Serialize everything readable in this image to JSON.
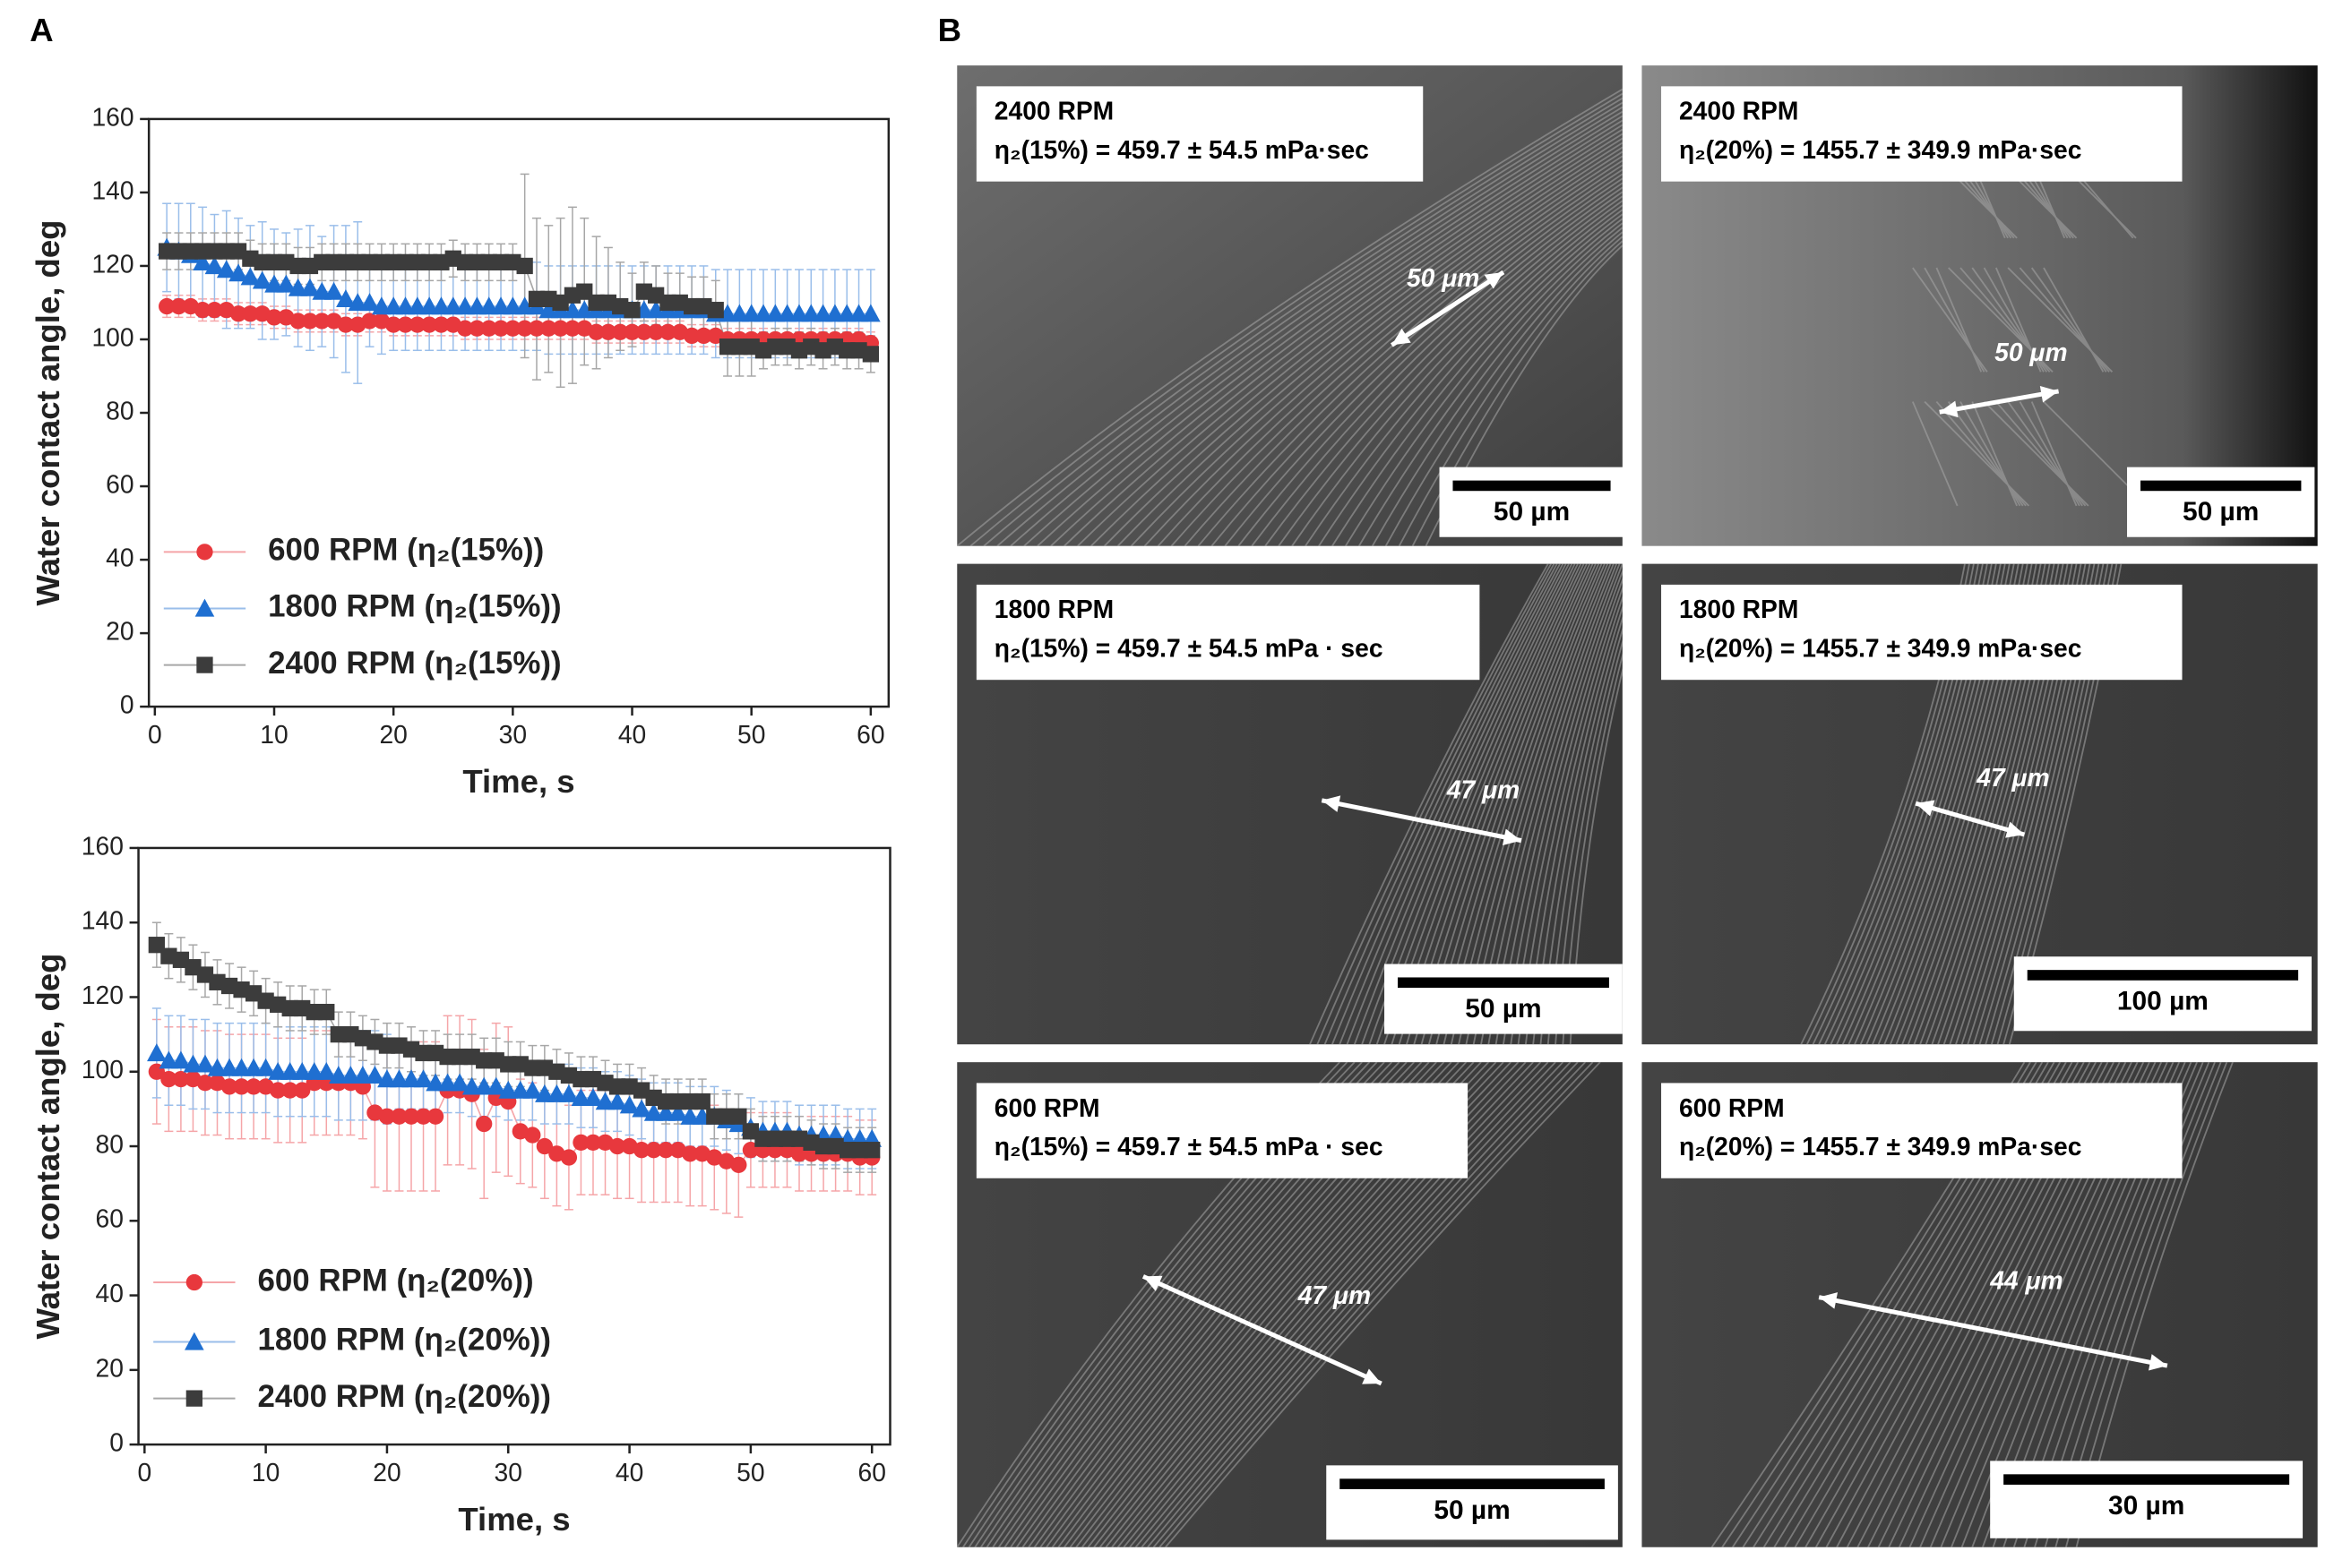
{
  "panel_labels": [
    "A",
    "B"
  ],
  "chart_data": [
    {
      "type": "line",
      "xlabel": "Time, s",
      "ylabel": "Water contact angle, deg",
      "xlim": [
        -0.5,
        61.5
      ],
      "ylim": [
        0,
        160
      ],
      "xticks": [
        0,
        10,
        20,
        30,
        40,
        50,
        60
      ],
      "yticks": [
        0,
        20,
        40,
        60,
        80,
        100,
        120,
        140,
        160
      ],
      "legend": "lower left",
      "x": [
        1,
        2,
        3,
        4,
        5,
        6,
        7,
        8,
        9,
        10,
        11,
        12,
        13,
        14,
        15,
        16,
        17,
        18,
        19,
        20,
        21,
        22,
        23,
        24,
        25,
        26,
        27,
        28,
        29,
        30,
        31,
        32,
        33,
        34,
        35,
        36,
        37,
        38,
        39,
        40,
        41,
        42,
        43,
        44,
        45,
        46,
        47,
        48,
        49,
        50,
        51,
        52,
        53,
        54,
        55,
        56,
        57,
        58,
        59,
        60
      ],
      "series": [
        {
          "name": "600 RPM (η₂(15%))",
          "color": "#e8383d",
          "marker": "circle",
          "values": [
            109,
            109,
            109,
            108,
            108,
            108,
            107,
            107,
            107,
            106,
            106,
            105,
            105,
            105,
            105,
            104,
            104,
            105,
            105,
            104,
            104,
            104,
            104,
            104,
            104,
            103,
            103,
            103,
            103,
            103,
            103,
            103,
            103,
            103,
            103,
            103,
            102,
            102,
            102,
            102,
            102,
            102,
            102,
            102,
            101,
            101,
            101,
            100,
            100,
            100,
            100,
            100,
            100,
            100,
            100,
            100,
            100,
            100,
            100,
            99
          ],
          "errors": [
            3,
            3,
            3,
            3,
            3,
            3,
            3,
            3,
            3,
            3,
            3,
            3,
            3,
            3,
            3,
            3,
            3,
            3,
            3,
            3,
            3,
            3,
            3,
            3,
            3,
            3,
            3,
            3,
            3,
            3,
            3,
            3,
            3,
            3,
            3,
            3,
            3,
            3,
            3,
            3,
            3,
            3,
            3,
            3,
            3,
            3,
            3,
            3,
            3,
            3,
            3,
            3,
            3,
            3,
            3,
            3,
            3,
            3,
            3,
            3
          ]
        },
        {
          "name": "1800 RPM (η₂(15%))",
          "color": "#1f6fd1",
          "marker": "triangle",
          "values": [
            125,
            124,
            123,
            121,
            120,
            119,
            118,
            117,
            116,
            115,
            115,
            114,
            114,
            113,
            113,
            111,
            110,
            110,
            109,
            109,
            109,
            109,
            109,
            109,
            109,
            109,
            109,
            109,
            109,
            109,
            109,
            109,
            108,
            108,
            108,
            108,
            108,
            108,
            108,
            108,
            108,
            108,
            108,
            108,
            108,
            108,
            107,
            107,
            107,
            107,
            107,
            107,
            107,
            107,
            107,
            107,
            107,
            107,
            107,
            107
          ],
          "errors": [
            12,
            13,
            14,
            15,
            14,
            16,
            15,
            14,
            16,
            15,
            14,
            16,
            17,
            15,
            18,
            20,
            22,
            12,
            13,
            12,
            12,
            12,
            12,
            12,
            12,
            12,
            12,
            12,
            12,
            12,
            12,
            12,
            12,
            12,
            12,
            12,
            12,
            12,
            12,
            12,
            12,
            12,
            12,
            12,
            12,
            12,
            12,
            12,
            12,
            12,
            12,
            12,
            12,
            12,
            12,
            12,
            12,
            12,
            12,
            12
          ]
        },
        {
          "name": "2400 RPM (η₂(15%))",
          "color": "#3c3c3c",
          "marker": "square",
          "values": [
            124,
            124,
            124,
            124,
            124,
            124,
            124,
            122,
            121,
            121,
            121,
            120,
            120,
            121,
            121,
            121,
            121,
            121,
            121,
            121,
            121,
            121,
            121,
            121,
            122,
            121,
            121,
            121,
            121,
            121,
            120,
            111,
            111,
            110,
            112,
            113,
            110,
            110,
            109,
            108,
            113,
            112,
            110,
            110,
            109,
            109,
            108,
            98,
            98,
            98,
            97,
            98,
            98,
            97,
            98,
            97,
            98,
            97,
            97,
            96
          ],
          "errors": [
            5,
            5,
            5,
            5,
            5,
            5,
            5,
            5,
            5,
            5,
            5,
            5,
            5,
            5,
            5,
            5,
            5,
            5,
            5,
            5,
            5,
            5,
            5,
            5,
            5,
            5,
            5,
            5,
            5,
            5,
            25,
            22,
            20,
            23,
            24,
            20,
            18,
            15,
            12,
            10,
            8,
            8,
            8,
            8,
            8,
            8,
            8,
            8,
            8,
            8,
            5,
            5,
            5,
            5,
            5,
            5,
            5,
            5,
            5,
            5
          ]
        }
      ]
    },
    {
      "type": "line",
      "xlabel": "Time, s",
      "ylabel": "Water contact angle, deg",
      "xlim": [
        -0.5,
        61.5
      ],
      "ylim": [
        0,
        160
      ],
      "xticks": [
        0,
        10,
        20,
        30,
        40,
        50,
        60
      ],
      "yticks": [
        0,
        20,
        40,
        60,
        80,
        100,
        120,
        140,
        160
      ],
      "legend": "lower left",
      "x": [
        1,
        2,
        3,
        4,
        5,
        6,
        7,
        8,
        9,
        10,
        11,
        12,
        13,
        14,
        15,
        16,
        17,
        18,
        19,
        20,
        21,
        22,
        23,
        24,
        25,
        26,
        27,
        28,
        29,
        30,
        31,
        32,
        33,
        34,
        35,
        36,
        37,
        38,
        39,
        40,
        41,
        42,
        43,
        44,
        45,
        46,
        47,
        48,
        49,
        50,
        51,
        52,
        53,
        54,
        55,
        56,
        57,
        58,
        59,
        60
      ],
      "series": [
        {
          "name": "600 RPM (η₂(20%))",
          "color": "#e8383d",
          "marker": "circle",
          "values": [
            100,
            98,
            98,
            98,
            97,
            97,
            96,
            96,
            96,
            96,
            95,
            95,
            95,
            97,
            97,
            97,
            97,
            96,
            89,
            88,
            88,
            88,
            88,
            88,
            95,
            95,
            94,
            86,
            93,
            92,
            84,
            83,
            80,
            78,
            77,
            81,
            81,
            81,
            80,
            80,
            79,
            79,
            79,
            79,
            78,
            78,
            77,
            76,
            75,
            79,
            79,
            79,
            79,
            78,
            78,
            78,
            78,
            78,
            77,
            77
          ],
          "errors": [
            14,
            14,
            14,
            14,
            14,
            14,
            14,
            14,
            14,
            14,
            14,
            14,
            14,
            14,
            14,
            14,
            14,
            14,
            20,
            20,
            20,
            20,
            20,
            20,
            20,
            20,
            20,
            20,
            20,
            20,
            14,
            14,
            14,
            14,
            14,
            14,
            14,
            14,
            14,
            14,
            14,
            14,
            14,
            14,
            14,
            14,
            14,
            14,
            14,
            10,
            10,
            10,
            10,
            10,
            10,
            10,
            10,
            10,
            10,
            10
          ]
        },
        {
          "name": "1800 RPM (η₂(20%))",
          "color": "#1f6fd1",
          "marker": "triangle",
          "values": [
            105,
            103,
            103,
            102,
            102,
            101,
            101,
            101,
            101,
            101,
            100,
            100,
            100,
            100,
            100,
            99,
            99,
            99,
            99,
            98,
            98,
            98,
            98,
            97,
            97,
            97,
            96,
            96,
            96,
            95,
            95,
            95,
            94,
            94,
            94,
            93,
            93,
            92,
            92,
            91,
            90,
            89,
            89,
            89,
            88,
            88,
            88,
            87,
            86,
            85,
            84,
            84,
            84,
            83,
            83,
            83,
            83,
            82,
            82,
            82
          ],
          "errors": [
            12,
            12,
            12,
            12,
            12,
            12,
            12,
            12,
            12,
            12,
            12,
            12,
            12,
            12,
            12,
            12,
            12,
            12,
            12,
            12,
            8,
            8,
            8,
            8,
            8,
            8,
            8,
            8,
            8,
            8,
            8,
            8,
            8,
            8,
            8,
            8,
            8,
            8,
            8,
            8,
            8,
            8,
            8,
            8,
            8,
            8,
            8,
            8,
            8,
            8,
            8,
            8,
            8,
            8,
            8,
            8,
            8,
            8,
            8,
            8
          ]
        },
        {
          "name": "2400 RPM (η₂(20%))",
          "color": "#3c3c3c",
          "marker": "square",
          "values": [
            134,
            131,
            130,
            128,
            126,
            124,
            123,
            122,
            121,
            119,
            118,
            117,
            117,
            116,
            116,
            110,
            110,
            109,
            108,
            107,
            107,
            106,
            105,
            105,
            104,
            104,
            104,
            103,
            103,
            102,
            102,
            101,
            101,
            100,
            99,
            98,
            98,
            97,
            96,
            96,
            95,
            93,
            92,
            92,
            92,
            92,
            88,
            88,
            88,
            84,
            82,
            82,
            82,
            82,
            81,
            80,
            80,
            79,
            79,
            79
          ],
          "errors": [
            6,
            6,
            6,
            6,
            6,
            6,
            6,
            6,
            6,
            6,
            6,
            6,
            6,
            6,
            6,
            6,
            6,
            6,
            6,
            6,
            6,
            6,
            6,
            6,
            6,
            6,
            6,
            6,
            6,
            6,
            6,
            6,
            6,
            6,
            6,
            6,
            6,
            6,
            6,
            6,
            6,
            6,
            6,
            6,
            6,
            6,
            6,
            6,
            6,
            6,
            6,
            6,
            6,
            6,
            6,
            6,
            6,
            6,
            6,
            6
          ]
        }
      ]
    }
  ],
  "micrographs": [
    {
      "title": "2400 RPM",
      "viscosity": "η₂(15%) = 459.7 ± 54.5 mPa·sec",
      "measure": "50 μm",
      "scale_bar": "50 µm"
    },
    {
      "title": "2400 RPM",
      "viscosity": "η₂(20%) = 1455.7 ± 349.9 mPa·sec",
      "measure": "50 μm",
      "scale_bar": "50 µm"
    },
    {
      "title": "1800 RPM",
      "viscosity": "η₂(15%) = 459.7 ± 54.5 mPa · sec",
      "measure": "47 μm",
      "scale_bar": "50 µm"
    },
    {
      "title": "1800 RPM",
      "viscosity": "η₂(20%) = 1455.7 ± 349.9 mPa·sec",
      "measure": "47 μm",
      "scale_bar": "100 µm"
    },
    {
      "title": "600 RPM",
      "viscosity": "η₂(15%) = 459.7 ± 54.5 mPa · sec",
      "measure": "47 μm",
      "scale_bar": "50 µm"
    },
    {
      "title": "600 RPM",
      "viscosity": "η₂(20%) = 1455.7 ± 349.9 mPa·sec",
      "measure": "44 μm",
      "scale_bar": "30 µm"
    }
  ]
}
